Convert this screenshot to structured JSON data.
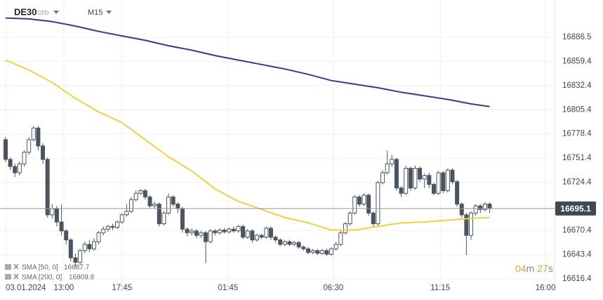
{
  "chart_data": {
    "type": "candlestick",
    "symbol": "DE30",
    "instrument": "CFD",
    "interval": "M15",
    "open": [
      16772,
      16750,
      16742,
      16735,
      16745,
      16758,
      16772,
      16785,
      16765,
      16750,
      16688,
      16695,
      16680,
      16670,
      16660,
      16640,
      16635,
      16648,
      16655,
      16650,
      16658,
      16668,
      16672,
      16675,
      16674,
      16680,
      16688,
      16692,
      16705,
      16712,
      16715,
      16708,
      16698,
      16700,
      16678,
      16690,
      16708,
      16700,
      16695,
      16672,
      16668,
      16670,
      16665,
      16668,
      16658,
      16670,
      16668,
      16671,
      16669,
      16672,
      16670,
      16675,
      16663,
      16670,
      16660,
      16665,
      16663,
      16673,
      16663,
      16660,
      16655,
      16658,
      16655,
      16657,
      16652,
      16650,
      16646,
      16648,
      16645,
      16648,
      16644,
      16650,
      16655,
      16668,
      16678,
      16690,
      16708,
      16700,
      16710,
      16690,
      16678,
      16724,
      16735,
      16745,
      16750,
      16718,
      16712,
      16740,
      16718,
      16740,
      16728,
      16732,
      16722,
      16712,
      16735,
      16715,
      16738,
      16725,
      16700,
      16688,
      16665,
      16690,
      16698,
      16694,
      16700
    ],
    "high": [
      16775,
      16752,
      16745,
      16748,
      16760,
      16775,
      16787,
      16787,
      16768,
      16752,
      16700,
      16698,
      16700,
      16672,
      16662,
      16645,
      16650,
      16658,
      16660,
      16662,
      16670,
      16675,
      16677,
      16678,
      16682,
      16690,
      16700,
      16708,
      16715,
      16717,
      16717,
      16710,
      16703,
      16702,
      16692,
      16712,
      16710,
      16702,
      16697,
      16674,
      16673,
      16672,
      16670,
      16670,
      16672,
      16672,
      16673,
      16673,
      16674,
      16675,
      16677,
      16677,
      16672,
      16672,
      16667,
      16667,
      16675,
      16675,
      16665,
      16662,
      16660,
      16660,
      16659,
      16659,
      16654,
      16652,
      16650,
      16650,
      16650,
      16650,
      16652,
      16658,
      16670,
      16680,
      16692,
      16710,
      16710,
      16712,
      16712,
      16692,
      16726,
      16738,
      16760,
      16755,
      16752,
      16720,
      16743,
      16742,
      16743,
      16742,
      16734,
      16735,
      16724,
      16737,
      16737,
      16740,
      16740,
      16727,
      16702,
      16690,
      16692,
      16700,
      16700,
      16702,
      16702
    ],
    "low": [
      16747,
      16738,
      16730,
      16732,
      16742,
      16755,
      16770,
      16760,
      16745,
      16685,
      16684,
      16675,
      16665,
      16655,
      16636,
      16630,
      16632,
      16645,
      16646,
      16648,
      16655,
      16665,
      16669,
      16671,
      16672,
      16678,
      16686,
      16690,
      16703,
      16710,
      16705,
      16695,
      16695,
      16675,
      16676,
      16688,
      16697,
      16690,
      16668,
      16664,
      16665,
      16662,
      16662,
      16634,
      16656,
      16665,
      16666,
      16667,
      16667,
      16668,
      16668,
      16661,
      16661,
      16657,
      16658,
      16661,
      16661,
      16660,
      16657,
      16653,
      16653,
      16653,
      16653,
      16650,
      16648,
      16644,
      16644,
      16643,
      16643,
      16642,
      16642,
      16648,
      16653,
      16666,
      16676,
      16688,
      16697,
      16698,
      16687,
      16675,
      16676,
      16722,
      16733,
      16742,
      16715,
      16708,
      16710,
      16715,
      16716,
      16725,
      16718,
      16718,
      16710,
      16710,
      16712,
      16713,
      16722,
      16697,
      16685,
      16643,
      16660,
      16687,
      16690,
      16692,
      16690
    ],
    "close": [
      16750,
      16742,
      16735,
      16745,
      16758,
      16772,
      16785,
      16765,
      16750,
      16688,
      16695,
      16680,
      16670,
      16660,
      16640,
      16635,
      16648,
      16655,
      16650,
      16658,
      16668,
      16672,
      16675,
      16674,
      16680,
      16688,
      16692,
      16705,
      16712,
      16715,
      16708,
      16698,
      16700,
      16678,
      16690,
      16708,
      16700,
      16695,
      16672,
      16668,
      16670,
      16665,
      16668,
      16658,
      16670,
      16668,
      16671,
      16669,
      16672,
      16670,
      16675,
      16663,
      16670,
      16660,
      16665,
      16663,
      16673,
      16663,
      16660,
      16655,
      16658,
      16655,
      16657,
      16652,
      16650,
      16646,
      16648,
      16645,
      16648,
      16644,
      16650,
      16655,
      16668,
      16678,
      16690,
      16708,
      16700,
      16710,
      16690,
      16678,
      16724,
      16735,
      16745,
      16750,
      16718,
      16712,
      16740,
      16718,
      16740,
      16728,
      16732,
      16722,
      16712,
      16735,
      16715,
      16738,
      16725,
      16700,
      16688,
      16665,
      16690,
      16698,
      16694,
      16700,
      16695.1
    ],
    "up_color": "#ffffff",
    "down_color": "#4a5561",
    "indicators": [
      {
        "name": "SMA [50, 0]",
        "last": 16687.7,
        "color": "#f2d13a",
        "x": [
          0,
          5,
          10,
          15,
          20,
          25,
          30,
          35,
          40,
          45,
          50,
          55,
          60,
          65,
          70,
          75,
          80,
          85,
          90,
          95,
          100,
          104
        ],
        "values": [
          16861,
          16850,
          16836,
          16818,
          16803,
          16791,
          16772,
          16753,
          16737,
          16717,
          16703,
          16694,
          16685,
          16679,
          16671,
          16671,
          16675,
          16679,
          16680,
          16682,
          16684,
          16685
        ]
      },
      {
        "name": "SMA [200, 0]",
        "last": 16809.8,
        "color": "#2e3d96",
        "x": [
          0,
          5,
          10,
          15,
          20,
          25,
          30,
          35,
          40,
          45,
          50,
          55,
          60,
          65,
          70,
          75,
          80,
          85,
          90,
          95,
          100,
          104
        ],
        "values": [
          16908,
          16907,
          16904,
          16899,
          16893,
          16888,
          16883,
          16877,
          16872,
          16866,
          16861,
          16856,
          16851,
          16845,
          16838,
          16834,
          16830,
          16825,
          16821,
          16817,
          16812,
          16809
        ]
      }
    ],
    "ylim": [
      16610.1,
      16928.1
    ],
    "yticks": [
      16616.4,
      16643.4,
      16670.4,
      16724.4,
      16751.4,
      16778.4,
      16805.4,
      16832.4,
      16859.4,
      16886.5
    ],
    "xlim": [
      -1.2,
      118
    ],
    "xticks": [
      {
        "value": 0,
        "label": "03.01.2024"
      },
      {
        "value": 12.5,
        "label": "13:00"
      },
      {
        "value": 25,
        "label": "17:45"
      },
      {
        "value": 47.8,
        "label": "01:45"
      },
      {
        "value": 70.4,
        "label": "06:30"
      },
      {
        "value": 93.4,
        "label": "11:15"
      },
      {
        "value": 116,
        "label": "16:00"
      }
    ],
    "grid": true,
    "countdown": {
      "minutes": "04",
      "minutes_unit": "m",
      "seconds": "27",
      "seconds_unit": "s"
    }
  }
}
